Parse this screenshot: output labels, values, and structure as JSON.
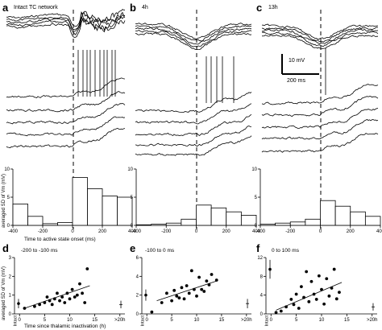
{
  "panels": {
    "a": {
      "letter": "a",
      "title": "Intact TC network"
    },
    "b": {
      "letter": "b",
      "title": "4h"
    },
    "c": {
      "letter": "c",
      "title": "13h"
    },
    "d": {
      "letter": "d",
      "title": "-200 to -100 ms"
    },
    "e": {
      "letter": "e",
      "title": "-100 to 0 ms"
    },
    "f": {
      "letter": "f",
      "title": "0 to 100 ms"
    }
  },
  "scalebar": {
    "voltage": "10 mV",
    "time": "200 ms"
  },
  "hist_axis": {
    "ylabel": "averaged SD of Vm (mV)",
    "xlabel": "Time to active state onset (ms)"
  },
  "scatter_axis": {
    "ylabel": "averaged SD of Vm (mV)",
    "xlabel": "Time since thalamic inactivation (h)"
  },
  "chart_data": [
    {
      "type": "bar",
      "panel": "a",
      "xlim": [
        -400,
        400
      ],
      "ylim": [
        0,
        10
      ],
      "xticks": [
        "-400",
        "-200",
        "0",
        "200",
        "400"
      ],
      "yticks": [
        "0",
        "5",
        "10"
      ],
      "bin_edges": [
        -400,
        -300,
        -200,
        -100,
        0,
        100,
        200,
        300,
        400
      ],
      "values": [
        3.8,
        1.6,
        0.3,
        0.5,
        8.5,
        6.5,
        5.2,
        5.0
      ]
    },
    {
      "type": "bar",
      "panel": "b",
      "xlim": [
        -400,
        400
      ],
      "ylim": [
        0,
        10
      ],
      "xticks": [
        "-400",
        "-200",
        "0",
        "200",
        "400"
      ],
      "yticks": [
        "0",
        "5",
        "10"
      ],
      "bin_edges": [
        -400,
        -300,
        -200,
        -100,
        0,
        100,
        200,
        300,
        400
      ],
      "values": [
        0.1,
        0.2,
        0.4,
        1.1,
        3.6,
        3.1,
        2.4,
        1.8
      ]
    },
    {
      "type": "bar",
      "panel": "c",
      "xlim": [
        -400,
        400
      ],
      "ylim": [
        0,
        10
      ],
      "xticks": [
        "-400",
        "-200",
        "0",
        "200",
        "400"
      ],
      "yticks": [
        "0",
        "5",
        "10"
      ],
      "bin_edges": [
        -400,
        -300,
        -200,
        -100,
        0,
        100,
        200,
        300,
        400
      ],
      "values": [
        0.2,
        0.4,
        0.6,
        1.1,
        4.4,
        3.4,
        2.4,
        1.6
      ]
    },
    {
      "type": "scatter",
      "panel": "d",
      "xlim": [
        -1,
        21
      ],
      "ylim": [
        0,
        3
      ],
      "xticks": [
        "0",
        "5",
        "10",
        "15",
        ">20h"
      ],
      "yticks": [
        "0",
        "1",
        "2",
        "3"
      ],
      "category_labels": [
        "Intact"
      ],
      "points": [
        [
          1,
          0.3
        ],
        [
          3,
          0.4
        ],
        [
          4,
          0.5
        ],
        [
          5,
          0.6
        ],
        [
          5.5,
          0.9
        ],
        [
          6,
          0.7
        ],
        [
          6.5,
          0.5
        ],
        [
          7,
          0.8
        ],
        [
          7.5,
          1.1
        ],
        [
          8,
          0.7
        ],
        [
          8.5,
          0.9
        ],
        [
          9,
          0.6
        ],
        [
          9.5,
          1.1
        ],
        [
          10,
          0.8
        ],
        [
          10.5,
          1.3
        ],
        [
          11,
          0.9
        ],
        [
          11.5,
          1.0
        ],
        [
          12,
          1.6
        ],
        [
          12.5,
          1.1
        ],
        [
          13,
          0.6
        ],
        [
          13.5,
          2.4
        ]
      ],
      "fit": [
        [
          1,
          0.3
        ],
        [
          14,
          1.5
        ]
      ],
      "intact_mean": 0.55,
      "intact_err": 0.25,
      "late_mean": 0.5,
      "late_err": 0.2
    },
    {
      "type": "scatter",
      "panel": "e",
      "xlim": [
        -1,
        21
      ],
      "ylim": [
        0,
        6
      ],
      "xticks": [
        "0",
        "5",
        "10",
        "15",
        ">20h"
      ],
      "yticks": [
        "0",
        "2",
        "4",
        "6"
      ],
      "category_labels": [
        "Intact"
      ],
      "points": [
        [
          1,
          0.2
        ],
        [
          3,
          1.2
        ],
        [
          4,
          2.2
        ],
        [
          5,
          1.4
        ],
        [
          5.5,
          2.5
        ],
        [
          6,
          1.9
        ],
        [
          6.5,
          1.7
        ],
        [
          7,
          2.8
        ],
        [
          7.5,
          1.6
        ],
        [
          8,
          3.0
        ],
        [
          8.5,
          2.2
        ],
        [
          9,
          4.6
        ],
        [
          9.5,
          2.6
        ],
        [
          10,
          1.9
        ],
        [
          10.5,
          3.9
        ],
        [
          11,
          2.6
        ],
        [
          11.5,
          2.4
        ],
        [
          12,
          3.5
        ],
        [
          12.5,
          3.1
        ],
        [
          13,
          4.2
        ],
        [
          14,
          3.6
        ]
      ],
      "fit": [
        [
          2,
          1.4
        ],
        [
          14,
          3.5
        ]
      ],
      "intact_mean": 2.0,
      "intact_err": 0.6,
      "late_mean": 1.1,
      "late_err": 0.5
    },
    {
      "type": "scatter",
      "panel": "f",
      "xlim": [
        -1,
        21
      ],
      "ylim": [
        0,
        12
      ],
      "xticks": [
        "0",
        "5",
        "10",
        "15",
        ">20h"
      ],
      "yticks": [
        "0",
        "4",
        "8",
        "12"
      ],
      "category_labels": [
        "Intact"
      ],
      "points": [
        [
          1,
          0.3
        ],
        [
          2,
          0.6
        ],
        [
          3,
          1.5
        ],
        [
          4,
          3.1
        ],
        [
          4.5,
          2.0
        ],
        [
          5,
          4.2
        ],
        [
          5.5,
          1.2
        ],
        [
          6,
          5.8
        ],
        [
          6.5,
          3.5
        ],
        [
          7,
          9.0
        ],
        [
          7.5,
          2.6
        ],
        [
          8,
          6.9
        ],
        [
          8.5,
          4.2
        ],
        [
          9,
          3.1
        ],
        [
          9.5,
          8.1
        ],
        [
          10,
          5.2
        ],
        [
          10.5,
          2.1
        ],
        [
          11,
          7.5
        ],
        [
          11.5,
          3.8
        ],
        [
          12,
          5.5
        ],
        [
          12.5,
          9.5
        ],
        [
          13,
          3.2
        ],
        [
          13.5,
          4.6
        ]
      ],
      "fit": [
        [
          1,
          0.8
        ],
        [
          14,
          6.7
        ]
      ],
      "intact_mean": 9.5,
      "intact_err": 2.0,
      "late_mean": 1.5,
      "late_err": 0.8
    }
  ]
}
